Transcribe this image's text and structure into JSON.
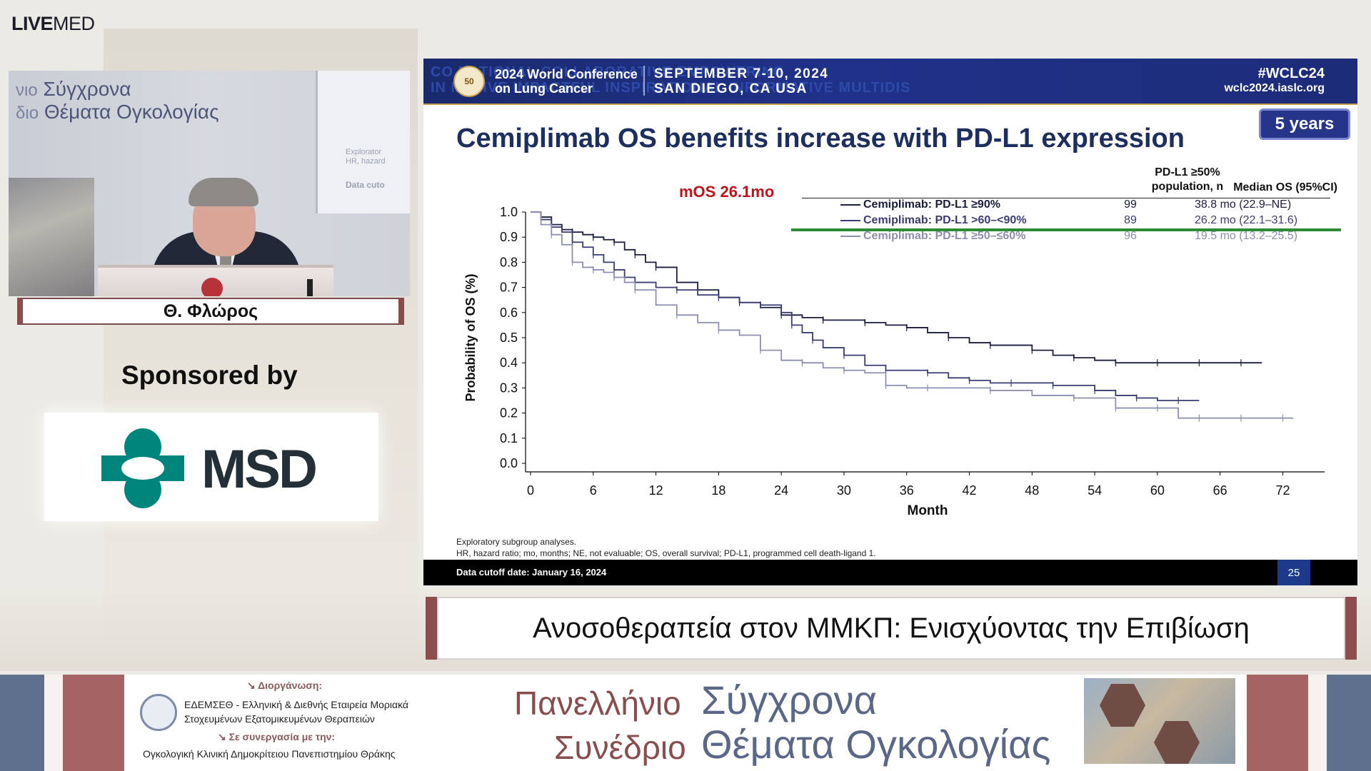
{
  "brand": {
    "live": "LIVE",
    "med": "MED"
  },
  "video": {
    "conference_line1_prefix": "νιο",
    "conference_line1": "Σύγχρονα",
    "conference_line2_prefix": "διο",
    "conference_line2": "Θέματα Ογκολογίας",
    "screen_text1": "Explorator",
    "screen_text2": "HR, hazard",
    "screen_text3": "Data cuto"
  },
  "speaker": {
    "name": "Θ. Φλώρος"
  },
  "sponsor": {
    "label": "Sponsored by",
    "name": "MSD"
  },
  "slide": {
    "header": {
      "badge": "50",
      "conf_line1": "2024 World Conference",
      "conf_line2": "on Lung Cancer",
      "date_line1": "SEPTEMBER 7-10, 2024",
      "date_line2": "SAN DIEGO, CA USA",
      "hashtag": "#WCLC24",
      "url": "wclc2024.iaslc.org",
      "bg_words1": "CO                          NATIONAL  COLLABORATIVE                    EMPOWERING",
      "bg_words2": "IN          MATIVE                      IMPACTFUL  INSPIRATIONAL  INFORMATIVE  MULTIDIS"
    },
    "title": "Cemiplimab OS benefits increase with PD-L1 expression",
    "years_badge": "5 years",
    "mos_annotation": "mOS 26.1mo",
    "legend": {
      "col_n_header_line1": "PD-L1 ≥50%",
      "col_n_header_line2": "population, n",
      "col_median_header": "Median OS (95%CI)",
      "rows": [
        {
          "label": "Cemiplimab: PD-L1 ≥90%",
          "n": "99",
          "median": "38.8 mo (22.9–NE)",
          "color": "#1b1d3e"
        },
        {
          "label": "Cemiplimab: PD-L1 >60–<90%",
          "n": "89",
          "median": "26.2 mo (22.1–31.6)",
          "color": "#3a3d74"
        },
        {
          "label": "Cemiplimab: PD-L1 ≥50–≤60%",
          "n": "96",
          "median": "19.5 mo (13.2–25.5)",
          "color": "#8d8fb1"
        }
      ]
    },
    "footnote1": "Exploratory subgroup analyses.",
    "footnote2": "HR, hazard ratio; mo, months; NE, not evaluable; OS, overall survival; PD-L1, programmed cell death-ligand 1.",
    "cutoff": "Data cutoff date: January 16, 2024",
    "page_number": "25"
  },
  "chart_data": {
    "type": "line",
    "title": "Cemiplimab OS benefits increase with PD-L1 expression",
    "xlabel": "Month",
    "ylabel": "Probability of OS (%)",
    "xlim": [
      0,
      76
    ],
    "ylim": [
      0,
      1.0
    ],
    "x_ticks": [
      0,
      6,
      12,
      18,
      24,
      30,
      36,
      42,
      48,
      54,
      60,
      66,
      72
    ],
    "y_ticks": [
      "0.0",
      "0.1",
      "0.2",
      "0.3",
      "0.4",
      "0.5",
      "0.6",
      "0.7",
      "0.8",
      "0.9",
      "1.0"
    ],
    "series": [
      {
        "name": "Cemiplimab: PD-L1 ≥90%",
        "color": "#1b1d3e",
        "x": [
          0,
          1,
          2,
          3,
          4,
          5,
          6,
          7,
          8,
          9,
          10,
          11,
          12,
          14,
          16,
          18,
          20,
          22,
          24,
          26,
          28,
          30,
          32,
          34,
          36,
          38,
          40,
          42,
          44,
          46,
          48,
          50,
          52,
          54,
          56,
          58,
          60,
          62,
          64,
          66,
          68,
          70
        ],
        "y": [
          1.0,
          0.98,
          0.95,
          0.93,
          0.92,
          0.91,
          0.9,
          0.89,
          0.88,
          0.85,
          0.83,
          0.8,
          0.78,
          0.72,
          0.69,
          0.66,
          0.64,
          0.62,
          0.59,
          0.58,
          0.57,
          0.57,
          0.56,
          0.55,
          0.54,
          0.52,
          0.5,
          0.48,
          0.47,
          0.47,
          0.45,
          0.43,
          0.42,
          0.41,
          0.4,
          0.4,
          0.4,
          0.4,
          0.4,
          0.4,
          0.4,
          0.4
        ]
      },
      {
        "name": "Cemiplimab: PD-L1 >60–<90%",
        "color": "#3a3d74",
        "x": [
          0,
          1,
          2,
          3,
          4,
          5,
          6,
          7,
          8,
          9,
          10,
          12,
          14,
          16,
          18,
          20,
          22,
          24,
          25,
          26,
          27,
          28,
          30,
          32,
          34,
          36,
          38,
          40,
          42,
          44,
          46,
          48,
          50,
          52,
          54,
          56,
          58,
          60,
          62,
          64
        ],
        "y": [
          1.0,
          0.97,
          0.94,
          0.92,
          0.88,
          0.86,
          0.83,
          0.8,
          0.77,
          0.74,
          0.72,
          0.7,
          0.69,
          0.67,
          0.66,
          0.64,
          0.63,
          0.6,
          0.55,
          0.52,
          0.49,
          0.46,
          0.43,
          0.39,
          0.37,
          0.37,
          0.36,
          0.34,
          0.33,
          0.32,
          0.32,
          0.32,
          0.31,
          0.31,
          0.29,
          0.27,
          0.26,
          0.25,
          0.25,
          0.25
        ]
      },
      {
        "name": "Cemiplimab: PD-L1 ≥50–≤60%",
        "color": "#8d8fb1",
        "x": [
          0,
          1,
          2,
          3,
          4,
          5,
          6,
          7,
          8,
          9,
          10,
          12,
          14,
          16,
          18,
          20,
          22,
          24,
          26,
          28,
          30,
          32,
          34,
          36,
          38,
          40,
          44,
          48,
          52,
          54,
          56,
          58,
          60,
          62,
          64,
          66,
          68,
          70,
          72,
          73
        ],
        "y": [
          1.0,
          0.95,
          0.91,
          0.87,
          0.8,
          0.78,
          0.77,
          0.76,
          0.74,
          0.72,
          0.69,
          0.63,
          0.59,
          0.56,
          0.53,
          0.51,
          0.45,
          0.41,
          0.4,
          0.38,
          0.37,
          0.36,
          0.31,
          0.3,
          0.3,
          0.3,
          0.29,
          0.27,
          0.26,
          0.26,
          0.22,
          0.22,
          0.22,
          0.18,
          0.18,
          0.18,
          0.18,
          0.18,
          0.18,
          0.18
        ]
      }
    ]
  },
  "lecture_title": "Ανοσοθεραπεία στον ΜΜΚΠ: Ενισχύοντας την Επιβίωση",
  "banner": {
    "organizer_label": "↘ Διοργάνωση:",
    "organizer_line1": "ΕΔΕΜΣΕΘ - Ελληνική & Διεθνής Εταιρεία Μοριακά",
    "organizer_line2": "Στοχευμένων Εξατομικευμένων Θεραπειών",
    "collab_label": "↘ Σε συνεργασία με την:",
    "collab_line": "Ογκολογική Κλινική Δημοκρίτειου Πανεπιστημίου Θράκης",
    "congress_word1": "Πανελλήνιο",
    "congress_word2": "Συνέδριο",
    "congress_word3": "Σύγχρονα",
    "congress_word4": "Θέματα Ογκολογίας"
  }
}
